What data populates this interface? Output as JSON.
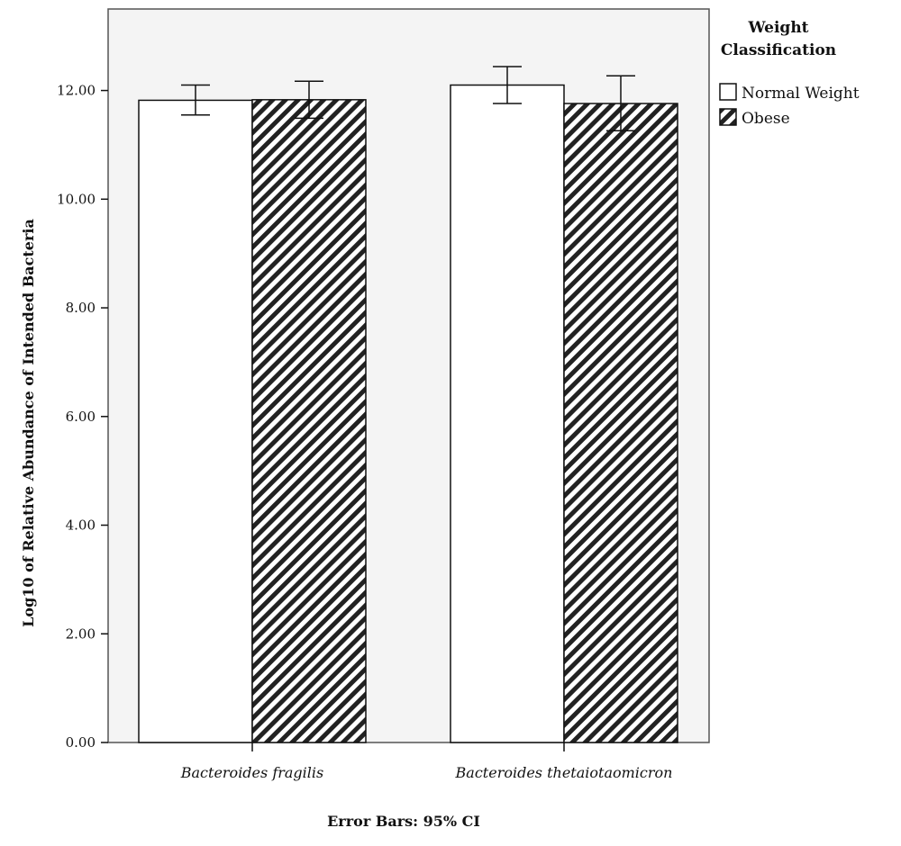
{
  "chart_data": {
    "type": "bar",
    "categories": [
      "Bacteroides fragilis",
      "Bacteroides thetaiotaomicron"
    ],
    "series": [
      {
        "name": "Normal Weight",
        "values": [
          11.82,
          12.1
        ],
        "ci_low": [
          11.55,
          11.76
        ],
        "ci_high": [
          12.1,
          12.44
        ],
        "fill": "white"
      },
      {
        "name": "Obese",
        "values": [
          11.83,
          11.76
        ],
        "ci_low": [
          11.49,
          11.26
        ],
        "ci_high": [
          12.17,
          12.27
        ],
        "fill": "hatched"
      }
    ],
    "ylabel": "Log10 of Relative Abundance of Intended Bacteria",
    "xlabel": "",
    "ylim": [
      0,
      13.5
    ],
    "yticks": [
      "0.00",
      "2.00",
      "4.00",
      "6.00",
      "8.00",
      "10.00",
      "12.00"
    ],
    "legend": {
      "title": "Weight Classification",
      "placement": "top-right"
    },
    "footnote": "Error Bars: 95% CI",
    "grid": false,
    "colors": {
      "plot_background": "#f4f4f4",
      "bar_stroke": "#111111",
      "hatch": "#222222"
    }
  }
}
